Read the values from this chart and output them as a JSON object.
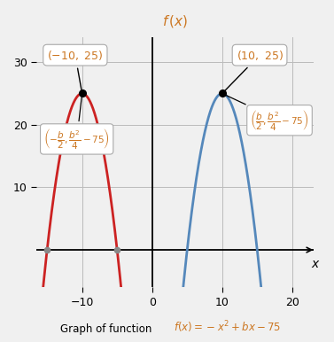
{
  "red_vertex_x": -10,
  "red_vertex_y": 25,
  "blue_vertex_x": 10,
  "blue_vertex_y": 25,
  "red_color": "#cc2222",
  "blue_color": "#5588bb",
  "orange_color": "#cc7722",
  "xlim": [
    -16.5,
    23
  ],
  "ylim": [
    -6,
    34
  ],
  "xticks": [
    -10,
    0,
    10,
    20
  ],
  "yticks": [
    10,
    20,
    30
  ],
  "xlabel": "x",
  "bg_color": "#f0f0f0",
  "grid_color": "#bbbbbb",
  "caption": "Graph of function",
  "caption_formula": "$f(x)=-x^2+bx-75$"
}
